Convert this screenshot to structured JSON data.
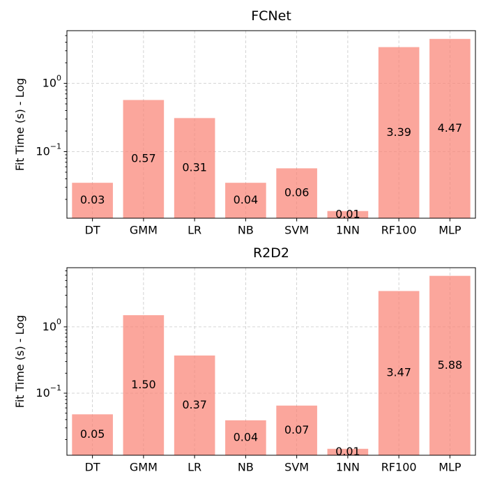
{
  "chart_data": [
    {
      "type": "bar",
      "title": "FCNet",
      "ylabel": "Fit Time (s) - Log",
      "yscale": "log",
      "ylim": [
        0.0106,
        5.9
      ],
      "categories": [
        "DT",
        "GMM",
        "LR",
        "NB",
        "SVM",
        "1NN",
        "RF100",
        "MLP"
      ],
      "values": [
        0.035,
        0.57,
        0.31,
        0.035,
        0.057,
        0.0135,
        3.39,
        4.47
      ],
      "data_labels": [
        "0.03",
        "0.57",
        "0.31",
        "0.04",
        "0.06",
        "0.01",
        "3.39",
        "4.47"
      ],
      "y_tick_labels": [
        {
          "value": 1,
          "text": "10^0"
        },
        {
          "value": 0.1,
          "text": "10^-1"
        }
      ],
      "color": "#fa8072",
      "grid": true
    },
    {
      "type": "bar",
      "title": "R2D2",
      "ylabel": "Fit Time (s) - Log",
      "yscale": "log",
      "ylim": [
        0.0116,
        7.8
      ],
      "categories": [
        "DT",
        "GMM",
        "LR",
        "NB",
        "SVM",
        "1NN",
        "RF100",
        "MLP"
      ],
      "values": [
        0.048,
        1.5,
        0.37,
        0.039,
        0.065,
        0.0145,
        3.47,
        5.88
      ],
      "data_labels": [
        "0.05",
        "1.50",
        "0.37",
        "0.04",
        "0.07",
        "0.01",
        "3.47",
        "5.88"
      ],
      "y_tick_labels": [
        {
          "value": 1,
          "text": "10^0"
        },
        {
          "value": 0.1,
          "text": "10^-1"
        }
      ],
      "color": "#fa8072",
      "grid": true
    }
  ]
}
